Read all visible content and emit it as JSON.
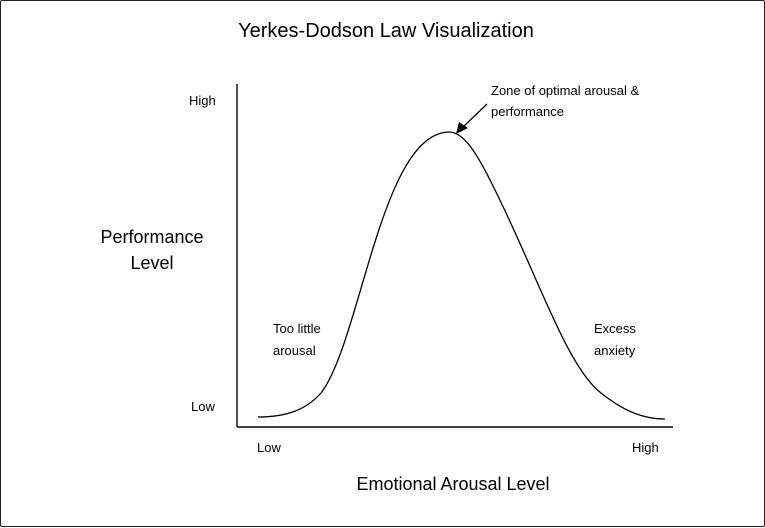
{
  "diagram": {
    "title": "Yerkes-Dodson Law Visualization",
    "y_axis": {
      "label_lines": [
        "Performance",
        "Level"
      ],
      "low_label": "Low",
      "high_label": "High"
    },
    "x_axis": {
      "label": "Emotional Arousal Level",
      "low_label": "Low",
      "high_label": "High"
    },
    "annotations": {
      "too_little_lines": [
        "Too little",
        "arousal"
      ],
      "optimal_lines": [
        "Zone of optimal arousal &",
        "performance"
      ],
      "excess_lines": [
        "Excess",
        "anxiety"
      ]
    },
    "curve": {
      "shape": "inverted-U",
      "description_points": [
        {
          "x": 0.0,
          "y": 0.03
        },
        {
          "x": 0.2,
          "y": 0.1
        },
        {
          "x": 0.5,
          "y": 1.0
        },
        {
          "x": 0.85,
          "y": 0.1
        },
        {
          "x": 1.0,
          "y": 0.02
        }
      ]
    },
    "colors": {
      "line": "#000000",
      "text": "#000000",
      "border": "#222222"
    }
  }
}
